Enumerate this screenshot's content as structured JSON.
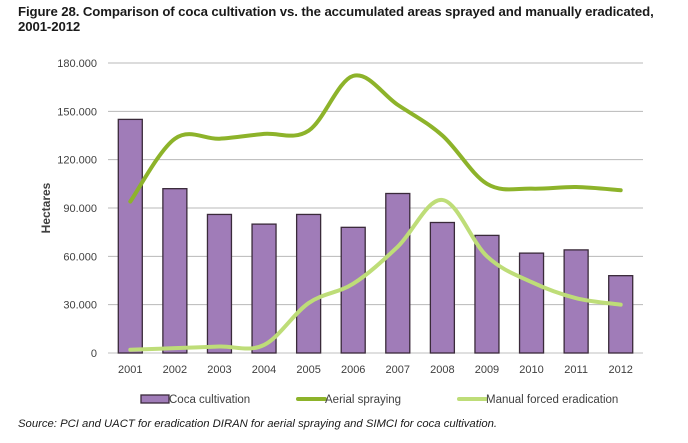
{
  "chart_data": {
    "type": "bar",
    "title": "Figure 28. Comparison of coca cultivation vs. the accumulated areas sprayed and manually eradicated, 2001-2012",
    "xlabel": "",
    "ylabel": "Hectares",
    "ylim": [
      0,
      180000
    ],
    "yticks": [
      0,
      30000,
      60000,
      90000,
      120000,
      150000,
      180000
    ],
    "ytick_labels": [
      "0",
      "30.000",
      "60.000",
      "90.000",
      "120.000",
      "150.000",
      "180.000"
    ],
    "grid": true,
    "legend_position": "bottom",
    "categories": [
      "2001",
      "2002",
      "2003",
      "2004",
      "2005",
      "2006",
      "2007",
      "2008",
      "2009",
      "2010",
      "2011",
      "2012"
    ],
    "series": [
      {
        "name": "Coca cultivation",
        "type": "bar",
        "color": "#a07cb8",
        "values": [
          145000,
          102000,
          86000,
          80000,
          86000,
          78000,
          99000,
          81000,
          73000,
          62000,
          64000,
          48000
        ]
      },
      {
        "name": "Aerial spraying",
        "type": "line",
        "color": "#8db32a",
        "values": [
          94000,
          133000,
          133000,
          136000,
          138000,
          172000,
          154000,
          135000,
          105000,
          102000,
          103000,
          101000
        ]
      },
      {
        "name": "Manual forced eradication",
        "type": "line",
        "color": "#bedd78",
        "values": [
          2000,
          3000,
          4000,
          5000,
          31000,
          43000,
          66000,
          95000,
          60000,
          44000,
          34000,
          30000
        ]
      }
    ]
  },
  "source": "Source: PCI and UACT for eradication DIRAN for aerial spraying and SIMCI for coca cultivation."
}
